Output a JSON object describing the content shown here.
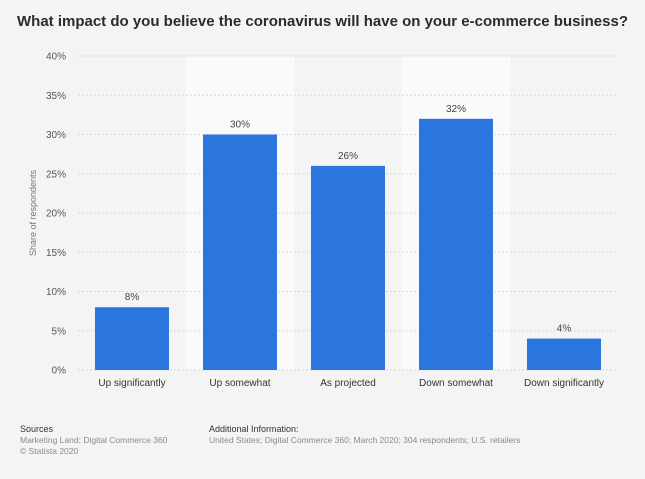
{
  "chart_data": {
    "type": "bar",
    "title": "What impact do you believe the coronavirus will have on your e-commerce business?",
    "xlabel": "",
    "ylabel": "Share of respondents",
    "categories": [
      "Up significantly",
      "Up somewhat",
      "As projected",
      "Down somewhat",
      "Down significantly"
    ],
    "values": [
      8,
      30,
      26,
      32,
      4
    ],
    "value_labels": [
      "8%",
      "30%",
      "26%",
      "32%",
      "4%"
    ],
    "ylim": [
      0,
      40
    ],
    "yticks": [
      0,
      5,
      10,
      15,
      20,
      25,
      30,
      35,
      40
    ],
    "ytick_labels": [
      "0%",
      "5%",
      "10%",
      "15%",
      "20%",
      "25%",
      "30%",
      "35%",
      "40%"
    ],
    "grid": true,
    "bar_color": "#2b76de",
    "alt_band_color": "#fafafa"
  },
  "footer": {
    "sources_heading": "Sources",
    "sources_text": "Marketing Land; Digital Commerce 360",
    "copyright": "© Statista 2020",
    "additional_heading": "Additional Information:",
    "additional_text": "United States; Digital Commerce 360; March 2020; 304 respondents; U.S. retailers"
  }
}
